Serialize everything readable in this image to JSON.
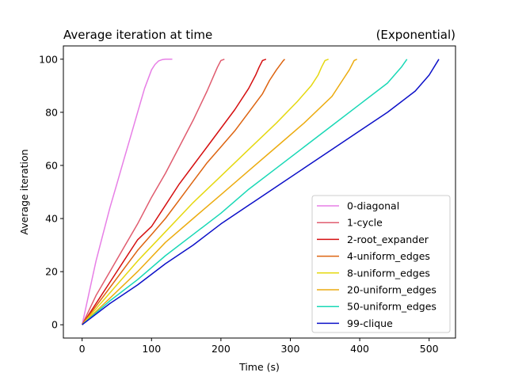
{
  "chart_data": {
    "type": "line",
    "title": "Average iteration at time",
    "title_right": "(Exponential)",
    "xlabel": "Time (s)",
    "ylabel": "Average iteration",
    "xlim": [
      -27,
      538
    ],
    "ylim": [
      -5,
      105
    ],
    "xticks": [
      0,
      100,
      200,
      300,
      400,
      500
    ],
    "yticks": [
      0,
      20,
      40,
      60,
      80,
      100
    ],
    "grid": false,
    "legend_position": "lower right",
    "series": [
      {
        "name": "0-diagonal",
        "color": "#e77fe6",
        "x": [
          0,
          10,
          20,
          30,
          40,
          50,
          60,
          70,
          80,
          90,
          100,
          105,
          110,
          115,
          120,
          130
        ],
        "y": [
          0,
          12,
          24,
          34,
          44,
          53,
          62,
          71,
          80,
          89,
          96,
          98,
          99.3,
          99.8,
          100,
          100
        ]
      },
      {
        "name": "1-cycle",
        "color": "#e05c6f",
        "x": [
          0,
          20,
          40,
          60,
          80,
          100,
          120,
          140,
          160,
          180,
          190,
          195,
          200,
          205
        ],
        "y": [
          0,
          11,
          20,
          29,
          38,
          48,
          57,
          67,
          77,
          88,
          94,
          97,
          99.5,
          100
        ]
      },
      {
        "name": "2-root_expander",
        "color": "#d50f10",
        "x": [
          0,
          20,
          40,
          60,
          80,
          100,
          120,
          140,
          160,
          180,
          200,
          220,
          240,
          250,
          255,
          260,
          265
        ],
        "y": [
          0,
          8,
          16,
          24,
          32,
          37,
          45,
          53,
          60,
          67,
          74,
          81,
          89,
          94,
          97,
          99.5,
          100
        ]
      },
      {
        "name": "4-uniform_edges",
        "color": "#dd6410",
        "x": [
          0,
          20,
          40,
          60,
          80,
          100,
          120,
          140,
          160,
          180,
          200,
          220,
          240,
          260,
          270,
          280,
          290,
          292
        ],
        "y": [
          0,
          7,
          14,
          21,
          28,
          34,
          40,
          47,
          54,
          61,
          67,
          73,
          80,
          87,
          92,
          96,
          99.5,
          100
        ]
      },
      {
        "name": "8-uniform_edges",
        "color": "#e5d810",
        "x": [
          0,
          40,
          80,
          120,
          160,
          200,
          240,
          280,
          310,
          330,
          340,
          345,
          350,
          355
        ],
        "y": [
          0,
          12,
          24,
          35,
          46,
          56,
          66,
          76,
          84,
          90,
          94,
          97,
          99.5,
          100
        ]
      },
      {
        "name": "20-uniform_edges",
        "color": "#ecac10",
        "x": [
          0,
          40,
          80,
          120,
          160,
          200,
          240,
          280,
          320,
          360,
          375,
          385,
          392,
          396
        ],
        "y": [
          0,
          10,
          20,
          31,
          40,
          49,
          58,
          67,
          76,
          86,
          92,
          96,
          99.5,
          100
        ]
      },
      {
        "name": "50-uniform_edges",
        "color": "#19d8b6",
        "x": [
          0,
          40,
          80,
          120,
          160,
          200,
          240,
          280,
          320,
          360,
          400,
          440,
          460,
          468
        ],
        "y": [
          0,
          9,
          17,
          26,
          34,
          42,
          51,
          59,
          67,
          75,
          83,
          91,
          97,
          100
        ]
      },
      {
        "name": "99-clique",
        "color": "#0c10c8",
        "x": [
          0,
          40,
          80,
          120,
          160,
          200,
          240,
          280,
          320,
          360,
          400,
          440,
          480,
          500,
          514
        ],
        "y": [
          0,
          8,
          15,
          23,
          30,
          38,
          45,
          52,
          59,
          66,
          73,
          80,
          88,
          94,
          100
        ]
      }
    ]
  }
}
